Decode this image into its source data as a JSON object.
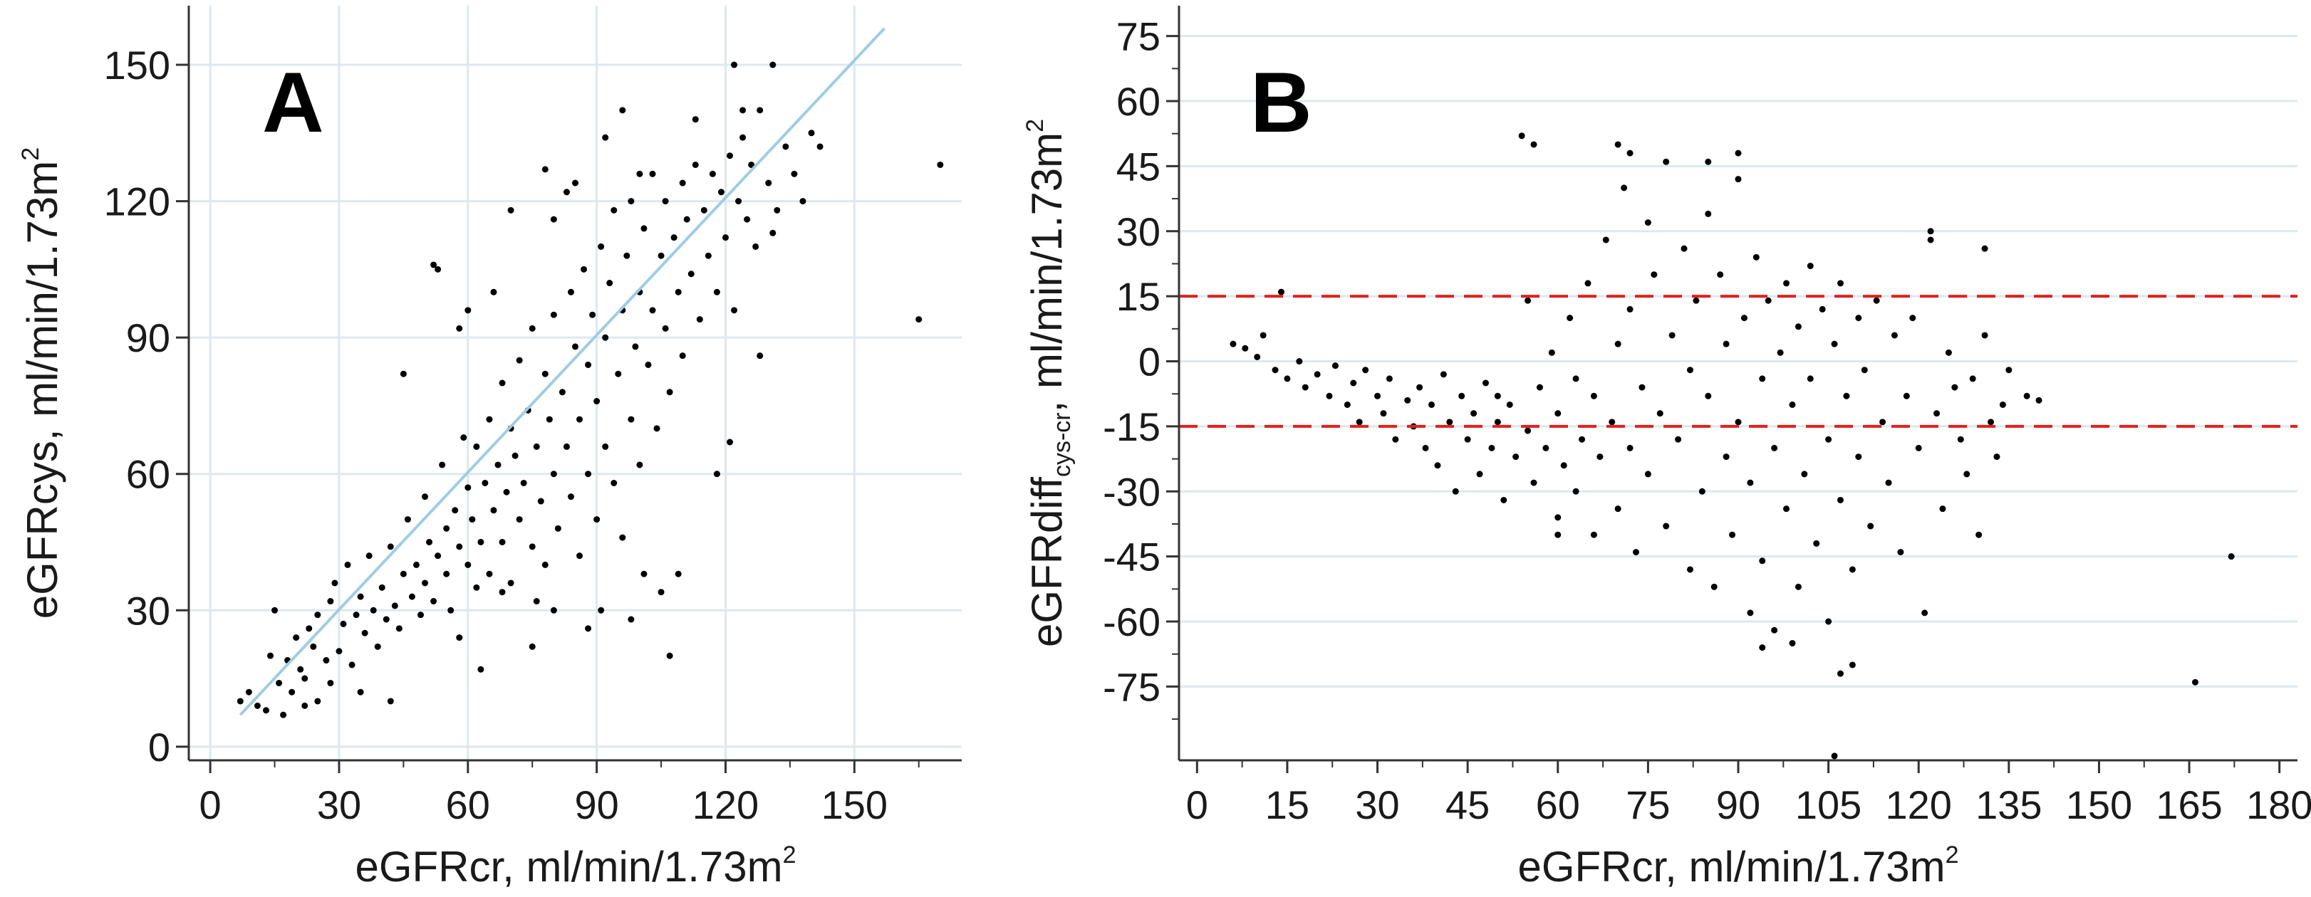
{
  "chart_data": [
    {
      "panel": "A",
      "type": "scatter",
      "xlabel": "eGFRcr, ml/min/1.73m",
      "xlabel_sup": "2",
      "ylabel": "eGFRcys, ml/min/1.73m",
      "ylabel_sup": "2",
      "xlim": [
        -5,
        175
      ],
      "ylim": [
        -3,
        163
      ],
      "xticks": [
        0,
        30,
        60,
        90,
        120,
        150
      ],
      "xtick_labels": [
        "0",
        "30",
        "60",
        "90",
        "120",
        "150"
      ],
      "yticks": [
        0,
        30,
        60,
        90,
        120,
        150
      ],
      "ytick_labels": [
        "0",
        "30",
        "60",
        "90",
        "120",
        "150"
      ],
      "grid": true,
      "colors": {
        "points": "#000000",
        "trend": "#9fcde3",
        "grid": "#dde8ee"
      },
      "trend_line": {
        "x": [
          7,
          157
        ],
        "y": [
          7,
          158
        ]
      },
      "points": [
        [
          7,
          10
        ],
        [
          9,
          12
        ],
        [
          11,
          9
        ],
        [
          13,
          8
        ],
        [
          14,
          20
        ],
        [
          15,
          30
        ],
        [
          16,
          14
        ],
        [
          18,
          19
        ],
        [
          19,
          12
        ],
        [
          20,
          24
        ],
        [
          21,
          17
        ],
        [
          22,
          15
        ],
        [
          23,
          26
        ],
        [
          24,
          22
        ],
        [
          25,
          29
        ],
        [
          25,
          10
        ],
        [
          27,
          19
        ],
        [
          28,
          32
        ],
        [
          29,
          36
        ],
        [
          30,
          21
        ],
        [
          31,
          27
        ],
        [
          32,
          40
        ],
        [
          33,
          18
        ],
        [
          34,
          29
        ],
        [
          35,
          33
        ],
        [
          36,
          25
        ],
        [
          37,
          42
        ],
        [
          38,
          30
        ],
        [
          39,
          22
        ],
        [
          40,
          35
        ],
        [
          41,
          28
        ],
        [
          42,
          44
        ],
        [
          43,
          31
        ],
        [
          44,
          26
        ],
        [
          45,
          38
        ],
        [
          46,
          50
        ],
        [
          47,
          33
        ],
        [
          48,
          40
        ],
        [
          49,
          29
        ],
        [
          50,
          36
        ],
        [
          50,
          55
        ],
        [
          51,
          45
        ],
        [
          52,
          32
        ],
        [
          53,
          42
        ],
        [
          54,
          62
        ],
        [
          55,
          38
        ],
        [
          55,
          48
        ],
        [
          56,
          30
        ],
        [
          57,
          52
        ],
        [
          58,
          44
        ],
        [
          59,
          68
        ],
        [
          60,
          40
        ],
        [
          60,
          57
        ],
        [
          61,
          50
        ],
        [
          62,
          35
        ],
        [
          62,
          66
        ],
        [
          63,
          45
        ],
        [
          64,
          58
        ],
        [
          65,
          72
        ],
        [
          65,
          38
        ],
        [
          66,
          52
        ],
        [
          67,
          62
        ],
        [
          68,
          80
        ],
        [
          68,
          45
        ],
        [
          69,
          56
        ],
        [
          70,
          70
        ],
        [
          70,
          36
        ],
        [
          71,
          64
        ],
        [
          72,
          85
        ],
        [
          72,
          50
        ],
        [
          73,
          58
        ],
        [
          74,
          74
        ],
        [
          75,
          44
        ],
        [
          75,
          92
        ],
        [
          76,
          66
        ],
        [
          77,
          54
        ],
        [
          78,
          82
        ],
        [
          78,
          40
        ],
        [
          79,
          72
        ],
        [
          80,
          60
        ],
        [
          80,
          95
        ],
        [
          81,
          48
        ],
        [
          82,
          78
        ],
        [
          83,
          66
        ],
        [
          84,
          100
        ],
        [
          84,
          55
        ],
        [
          85,
          88
        ],
        [
          86,
          42
        ],
        [
          86,
          72
        ],
        [
          87,
          105
        ],
        [
          88,
          60
        ],
        [
          88,
          84
        ],
        [
          89,
          95
        ],
        [
          90,
          50
        ],
        [
          90,
          76
        ],
        [
          91,
          110
        ],
        [
          92,
          66
        ],
        [
          92,
          90
        ],
        [
          93,
          102
        ],
        [
          94,
          58
        ],
        [
          94,
          118
        ],
        [
          95,
          82
        ],
        [
          96,
          96
        ],
        [
          96,
          46
        ],
        [
          97,
          108
        ],
        [
          98,
          72
        ],
        [
          98,
          120
        ],
        [
          99,
          88
        ],
        [
          100,
          100
        ],
        [
          100,
          62
        ],
        [
          101,
          114
        ],
        [
          102,
          84
        ],
        [
          103,
          126
        ],
        [
          103,
          96
        ],
        [
          104,
          70
        ],
        [
          105,
          108
        ],
        [
          106,
          92
        ],
        [
          106,
          120
        ],
        [
          107,
          78
        ],
        [
          108,
          112
        ],
        [
          109,
          100
        ],
        [
          110,
          124
        ],
        [
          110,
          86
        ],
        [
          111,
          116
        ],
        [
          112,
          104
        ],
        [
          113,
          128
        ],
        [
          114,
          94
        ],
        [
          115,
          118
        ],
        [
          116,
          108
        ],
        [
          117,
          126
        ],
        [
          118,
          100
        ],
        [
          119,
          122
        ],
        [
          120,
          112
        ],
        [
          121,
          130
        ],
        [
          122,
          96
        ],
        [
          123,
          120
        ],
        [
          124,
          134
        ],
        [
          125,
          116
        ],
        [
          126,
          128
        ],
        [
          127,
          110
        ],
        [
          128,
          140
        ],
        [
          130,
          124
        ],
        [
          131,
          150
        ],
        [
          132,
          118
        ],
        [
          134,
          132
        ],
        [
          136,
          126
        ],
        [
          138,
          120
        ],
        [
          140,
          135
        ],
        [
          142,
          132
        ],
        [
          122,
          150
        ],
        [
          118,
          60
        ],
        [
          121,
          67
        ],
        [
          128,
          86
        ],
        [
          131,
          113
        ],
        [
          107,
          20
        ],
        [
          98,
          28
        ],
        [
          105,
          34
        ],
        [
          88,
          26
        ],
        [
          75,
          22
        ],
        [
          42,
          10
        ],
        [
          63,
          17
        ],
        [
          96,
          140
        ],
        [
          52,
          106
        ],
        [
          53,
          105
        ],
        [
          165,
          94
        ],
        [
          170,
          128
        ],
        [
          85,
          124
        ],
        [
          78,
          127
        ],
        [
          60,
          96
        ],
        [
          66,
          100
        ],
        [
          45,
          82
        ],
        [
          58,
          92
        ],
        [
          70,
          118
        ],
        [
          80,
          116
        ],
        [
          83,
          122
        ],
        [
          92,
          134
        ],
        [
          100,
          126
        ],
        [
          113,
          138
        ],
        [
          124,
          140
        ],
        [
          80,
          30
        ],
        [
          91,
          30
        ],
        [
          101,
          38
        ],
        [
          109,
          38
        ],
        [
          76,
          32
        ],
        [
          68,
          34
        ],
        [
          58,
          24
        ],
        [
          35,
          12
        ],
        [
          28,
          14
        ],
        [
          22,
          9
        ],
        [
          17,
          7
        ]
      ]
    },
    {
      "panel": "B",
      "type": "scatter",
      "xlabel": "eGFRcr, ml/min/1.73m",
      "xlabel_sup": "2",
      "ylabel_main": "eGFRdiff",
      "ylabel_sub": "cys-cr",
      "ylabel_rest": ",  ml/min/1.73m",
      "ylabel_sup": "2",
      "xlim": [
        -3,
        183
      ],
      "ylim": [
        -92,
        82
      ],
      "xticks": [
        0,
        15,
        30,
        45,
        60,
        75,
        90,
        105,
        120,
        135,
        150,
        165,
        180
      ],
      "xtick_labels": [
        "0",
        "15",
        "30",
        "45",
        "60",
        "75",
        "90",
        "105",
        "120",
        "135",
        "150",
        "165",
        "180"
      ],
      "yticks": [
        75,
        60,
        45,
        30,
        15,
        0,
        -15,
        -30,
        -45,
        -60,
        -75
      ],
      "ytick_labels": [
        "75",
        "60",
        "45",
        "30",
        "15",
        "0",
        "-15",
        "-30",
        "-45",
        "-60",
        "-75"
      ],
      "grid": true,
      "reference_lines": [
        15,
        -15
      ],
      "colors": {
        "points": "#000000",
        "reference": "#e0201b",
        "grid": "#dde8ee"
      },
      "points": [
        [
          6,
          4
        ],
        [
          8,
          3
        ],
        [
          10,
          1
        ],
        [
          11,
          6
        ],
        [
          13,
          -2
        ],
        [
          14,
          16
        ],
        [
          15,
          -4
        ],
        [
          17,
          0
        ],
        [
          18,
          -6
        ],
        [
          20,
          -3
        ],
        [
          22,
          -8
        ],
        [
          23,
          -1
        ],
        [
          25,
          -10
        ],
        [
          26,
          -5
        ],
        [
          27,
          -14
        ],
        [
          28,
          -2
        ],
        [
          30,
          -8
        ],
        [
          31,
          -12
        ],
        [
          32,
          -4
        ],
        [
          33,
          -18
        ],
        [
          35,
          -9
        ],
        [
          36,
          -15
        ],
        [
          37,
          -6
        ],
        [
          38,
          -20
        ],
        [
          39,
          -10
        ],
        [
          40,
          -24
        ],
        [
          41,
          -3
        ],
        [
          42,
          -14
        ],
        [
          43,
          -30
        ],
        [
          44,
          -8
        ],
        [
          45,
          -18
        ],
        [
          46,
          -12
        ],
        [
          47,
          -26
        ],
        [
          48,
          -5
        ],
        [
          49,
          -20
        ],
        [
          50,
          -14
        ],
        [
          51,
          -32
        ],
        [
          52,
          -10
        ],
        [
          53,
          -22
        ],
        [
          54,
          52
        ],
        [
          55,
          -16
        ],
        [
          55,
          14
        ],
        [
          56,
          -28
        ],
        [
          57,
          -6
        ],
        [
          58,
          -20
        ],
        [
          59,
          2
        ],
        [
          60,
          -36
        ],
        [
          60,
          -12
        ],
        [
          61,
          -24
        ],
        [
          62,
          10
        ],
        [
          63,
          -30
        ],
        [
          63,
          -4
        ],
        [
          64,
          -18
        ],
        [
          65,
          18
        ],
        [
          66,
          -40
        ],
        [
          66,
          -8
        ],
        [
          67,
          -22
        ],
        [
          68,
          28
        ],
        [
          69,
          -14
        ],
        [
          70,
          -34
        ],
        [
          70,
          4
        ],
        [
          71,
          40
        ],
        [
          72,
          -20
        ],
        [
          72,
          12
        ],
        [
          73,
          -44
        ],
        [
          74,
          -6
        ],
        [
          75,
          32
        ],
        [
          75,
          -26
        ],
        [
          76,
          20
        ],
        [
          77,
          -12
        ],
        [
          78,
          46
        ],
        [
          78,
          -38
        ],
        [
          79,
          6
        ],
        [
          80,
          -18
        ],
        [
          81,
          26
        ],
        [
          82,
          -48
        ],
        [
          82,
          -2
        ],
        [
          83,
          14
        ],
        [
          84,
          -30
        ],
        [
          85,
          34
        ],
        [
          85,
          -8
        ],
        [
          86,
          -52
        ],
        [
          87,
          20
        ],
        [
          88,
          -22
        ],
        [
          88,
          4
        ],
        [
          89,
          -40
        ],
        [
          90,
          42
        ],
        [
          90,
          -14
        ],
        [
          91,
          10
        ],
        [
          92,
          -58
        ],
        [
          92,
          -28
        ],
        [
          93,
          24
        ],
        [
          94,
          -4
        ],
        [
          94,
          -46
        ],
        [
          95,
          14
        ],
        [
          96,
          -20
        ],
        [
          96,
          -62
        ],
        [
          97,
          2
        ],
        [
          98,
          -34
        ],
        [
          98,
          18
        ],
        [
          99,
          -10
        ],
        [
          100,
          -52
        ],
        [
          100,
          8
        ],
        [
          101,
          -26
        ],
        [
          102,
          22
        ],
        [
          102,
          -4
        ],
        [
          103,
          -42
        ],
        [
          104,
          12
        ],
        [
          105,
          -18
        ],
        [
          105,
          -60
        ],
        [
          106,
          4
        ],
        [
          107,
          -32
        ],
        [
          107,
          18
        ],
        [
          108,
          -8
        ],
        [
          109,
          -48
        ],
        [
          110,
          10
        ],
        [
          110,
          -22
        ],
        [
          111,
          -2
        ],
        [
          112,
          -38
        ],
        [
          113,
          14
        ],
        [
          114,
          -14
        ],
        [
          115,
          -28
        ],
        [
          116,
          6
        ],
        [
          117,
          -44
        ],
        [
          118,
          -8
        ],
        [
          119,
          10
        ],
        [
          120,
          -20
        ],
        [
          121,
          -58
        ],
        [
          122,
          28
        ],
        [
          123,
          -12
        ],
        [
          124,
          -34
        ],
        [
          125,
          2
        ],
        [
          126,
          -6
        ],
        [
          127,
          -18
        ],
        [
          128,
          -26
        ],
        [
          129,
          -4
        ],
        [
          130,
          -40
        ],
        [
          131,
          6
        ],
        [
          132,
          -14
        ],
        [
          133,
          -22
        ],
        [
          134,
          -10
        ],
        [
          135,
          -2
        ],
        [
          138,
          -8
        ],
        [
          140,
          -9
        ],
        [
          70,
          50
        ],
        [
          72,
          48
        ],
        [
          56,
          50
        ],
        [
          90,
          48
        ],
        [
          85,
          46
        ],
        [
          107,
          -72
        ],
        [
          109,
          -70
        ],
        [
          106,
          -91
        ],
        [
          166,
          -74
        ],
        [
          172,
          -45
        ],
        [
          122,
          30
        ],
        [
          131,
          26
        ],
        [
          99,
          -65
        ],
        [
          94,
          -66
        ],
        [
          60,
          -40
        ],
        [
          50,
          -8
        ]
      ]
    }
  ]
}
